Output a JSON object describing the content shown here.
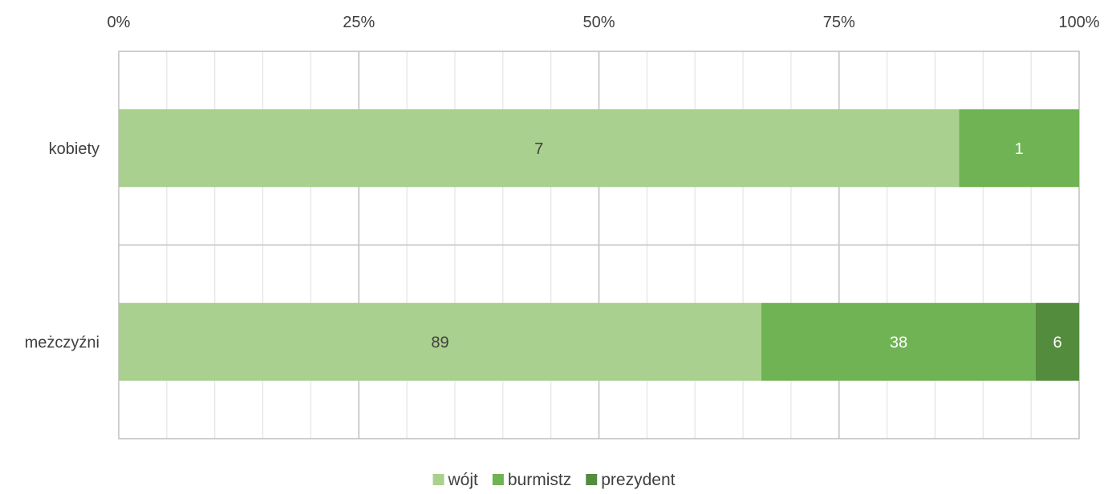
{
  "chart_data": {
    "type": "bar",
    "orientation": "horizontal",
    "stacked": "percent",
    "categories": [
      "kobiety",
      "meżczyźni"
    ],
    "series": [
      {
        "name": "wójt",
        "values": [
          7,
          89
        ],
        "color": "#a9d08e",
        "label_color": "#404040"
      },
      {
        "name": "burmistz",
        "values": [
          1,
          38
        ],
        "color": "#70b355",
        "label_color": "#ffffff"
      },
      {
        "name": "prezydent",
        "values": [
          0,
          6
        ],
        "color": "#548c3e",
        "label_color": "#ffffff"
      }
    ],
    "xaxis": {
      "ticks": [
        "0%",
        "25%",
        "50%",
        "75%",
        "100%"
      ],
      "range": [
        0,
        100
      ],
      "position": "top",
      "major_grid": true,
      "minor_grid": true
    },
    "legend": {
      "position": "bottom"
    }
  }
}
